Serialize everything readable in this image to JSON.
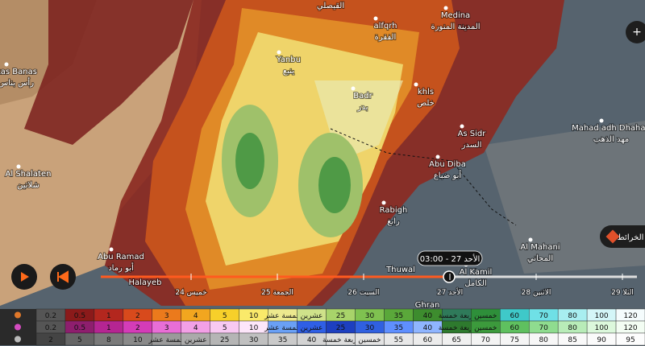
{
  "map": {
    "places": [
      {
        "label": "Medina",
        "label_ar": "المدينة المنورة"
      },
      {
        "label": "alfqrh",
        "label_ar": "الفقرة"
      },
      {
        "label": "Yanbu",
        "label_ar": "ينبع"
      },
      {
        "label": "Badr",
        "label_ar": "بدر"
      },
      {
        "label": "khls",
        "label_ar": "خلص"
      },
      {
        "label": "As Sidr",
        "label_ar": "السدر"
      },
      {
        "label": "Abu Diba",
        "label_ar": "أبو ضباع"
      },
      {
        "label": "Rabigh",
        "label_ar": "رابغ"
      },
      {
        "label": "Mahad adh Dhahab",
        "label_ar": "مهد الذهب"
      },
      {
        "label": "Al Mahani",
        "label_ar": "المحاني"
      },
      {
        "label": "Al Kamil",
        "label_ar": "الكامل"
      },
      {
        "label": "Abu Ramad",
        "label_ar": "أبو رماد"
      },
      {
        "label": "Al Shalaten",
        "label_ar": "شلاتين"
      },
      {
        "label": "Ras Banas",
        "label_ar": "رأس بناس"
      }
    ],
    "other_labels": [
      "القيصلي",
      "Thuwal",
      "Ghran",
      "Halayeb"
    ]
  },
  "layers_button": "الخرائط",
  "timeline": {
    "current": "الأحد 27 - 03:00",
    "days": [
      "خميس 24",
      "الجمعة 25",
      "السبت 26",
      "الأحد 27",
      "الاثنين 28",
      "الثلا 29"
    ]
  },
  "legend": {
    "rows": [
      [
        0.2,
        0.5,
        1,
        2,
        3,
        4,
        5,
        10,
        "خمسة عشر",
        "عشرين",
        25,
        30,
        35,
        40,
        "أربعة خمسة",
        "خمسين",
        60,
        70,
        80,
        100,
        120
      ],
      [
        0.2,
        0.5,
        1,
        2,
        3,
        4,
        5,
        10,
        "خمسة عشر",
        "عشرين",
        25,
        30,
        35,
        40,
        "أربعة خمسة",
        "خمسين",
        60,
        70,
        80,
        100,
        120
      ],
      [
        2,
        5,
        8,
        10,
        "خمسة عشر",
        "عشرين",
        25,
        30,
        35,
        40,
        "أربعة خمسة",
        "خمسين",
        55,
        60,
        65,
        70,
        75,
        80,
        85,
        90,
        95
      ]
    ]
  }
}
